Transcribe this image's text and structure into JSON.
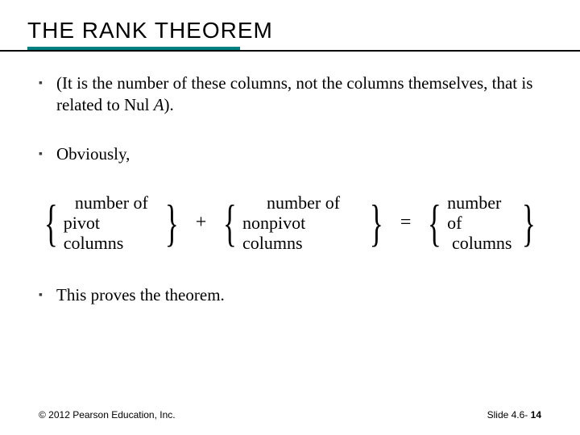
{
  "title": "THE RANK THEOREM",
  "colors": {
    "teal": "#008080",
    "black": "#000000",
    "bullet_mark": "#404040",
    "background": "#ffffff"
  },
  "bullets": [
    {
      "text_before": "(It is the number of these columns, not the columns themselves, that is related to Nul ",
      "italic": "A",
      "text_after": ")."
    },
    {
      "text": "Obviously,"
    },
    {
      "text": "This proves the theorem."
    }
  ],
  "equation": {
    "group1": {
      "line1": "number of",
      "line2": "pivot columns"
    },
    "op1": "+",
    "group2": {
      "line1": "number of",
      "line2": "nonpivot columns"
    },
    "op2": "=",
    "group3": {
      "line1": "number of",
      "line2": "columns"
    }
  },
  "footer": {
    "left": "© 2012 Pearson Education, Inc.",
    "right_label": "Slide 4.6- ",
    "right_num": "14"
  }
}
